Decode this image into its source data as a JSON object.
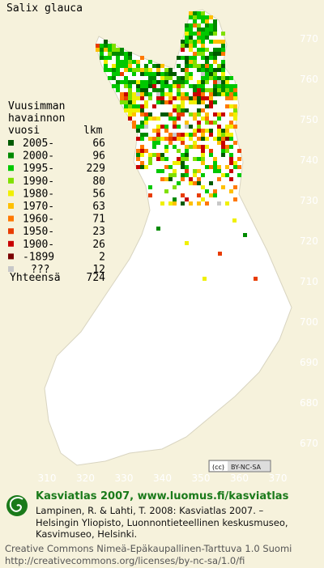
{
  "title": "Salix glauca",
  "legend": {
    "heading": [
      "Vuusimman",
      "havainnon"
    ],
    "columns": [
      "vuosi",
      "lkm"
    ],
    "rows": [
      {
        "label": "2005-",
        "count": 66,
        "color": "#005a00"
      },
      {
        "label": "2000-",
        "count": 96,
        "color": "#008a00"
      },
      {
        "label": "1995-",
        "count": 229,
        "color": "#00c800"
      },
      {
        "label": "1990-",
        "count": 80,
        "color": "#80e000"
      },
      {
        "label": "1980-",
        "count": 56,
        "color": "#f0f000"
      },
      {
        "label": "1970-",
        "count": 63,
        "color": "#ffc000"
      },
      {
        "label": "1960-",
        "count": 71,
        "color": "#ff7800"
      },
      {
        "label": "1950-",
        "count": 23,
        "color": "#e83c00"
      },
      {
        "label": "1900-",
        "count": 26,
        "color": "#c80000"
      },
      {
        "label": "-1899",
        "count": 2,
        "color": "#7a0000"
      },
      {
        "label": "???",
        "count": 12,
        "color": "#c8c8c8"
      }
    ],
    "total": {
      "label": "Yhteensä",
      "count": 724
    }
  },
  "axes": {
    "y_labels": [
      770,
      760,
      750,
      740,
      730,
      720,
      710,
      700,
      690,
      680,
      670
    ],
    "x_labels": [
      310,
      320,
      330,
      340,
      350,
      360,
      370
    ]
  },
  "license_badge": "BY-NC-SA",
  "footer": {
    "heading": "Kasviatlas 2007, www.luomus.fi/kasviatlas",
    "citation": [
      "Lampinen, R. & Lahti, T. 2008: Kasviatlas 2007. –",
      "Helsingin Yliopisto, Luonnontieteellinen keskusmuseo,",
      "Kasvimuseo, Helsinki."
    ],
    "license": [
      "Creative Commons Nimeä-Epäkaupallinen-Tarttuva 1.0 Suomi",
      "http://creativecommons.org/licenses/by-nc-sa/1.0/fi"
    ]
  }
}
